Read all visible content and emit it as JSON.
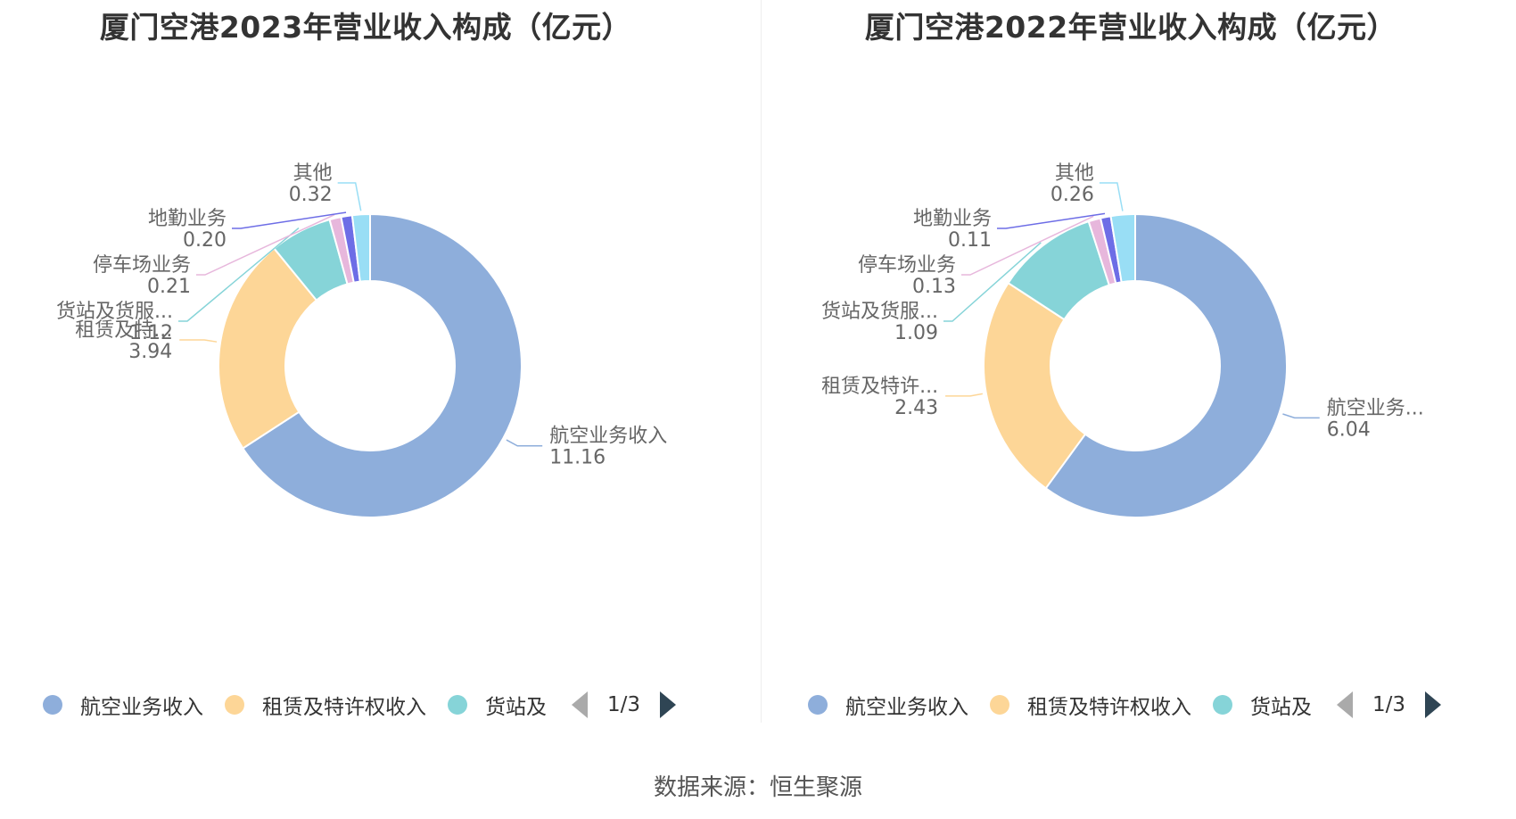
{
  "source_text": "数据来源：恒生聚源",
  "colors": [
    "#8eaedb",
    "#fdd697",
    "#86d4d8",
    "#e7b7dc",
    "#6d6de6",
    "#99def5"
  ],
  "chart_data": [
    {
      "type": "pie",
      "title": "厦门空港2023年营业收入构成（亿元）",
      "categories": [
        "航空业务收入",
        "租赁及特许权收入",
        "货站及货服务收入",
        "停车场业务",
        "地勤业务",
        "其他"
      ],
      "label_names": [
        "航空业务收入",
        "租赁及特...",
        "货站及货服...",
        "停车场业务",
        "地勤业务",
        "其他"
      ],
      "values": [
        11.16,
        3.94,
        1.12,
        0.21,
        0.2,
        0.32
      ],
      "value_labels": [
        "11.16",
        "3.94",
        "1.12",
        "0.21",
        "0.20",
        "0.32"
      ],
      "legend": {
        "items": [
          "航空业务收入",
          "租赁及特许权收入",
          "货站及"
        ],
        "page": "1/3"
      }
    },
    {
      "type": "pie",
      "title": "厦门空港2022年营业收入构成（亿元）",
      "categories": [
        "航空业务收入",
        "租赁及特许权收入",
        "货站及货服务收入",
        "停车场业务",
        "地勤业务",
        "其他"
      ],
      "label_names": [
        "航空业务...",
        "租赁及特许...",
        "货站及货服...",
        "停车场业务",
        "地勤业务",
        "其他"
      ],
      "values": [
        6.04,
        2.43,
        1.09,
        0.13,
        0.11,
        0.26
      ],
      "value_labels": [
        "6.04",
        "2.43",
        "1.09",
        "0.13",
        "0.11",
        "0.26"
      ],
      "legend": {
        "items": [
          "航空业务收入",
          "租赁及特许权收入",
          "货站及"
        ],
        "page": "1/3"
      }
    }
  ]
}
